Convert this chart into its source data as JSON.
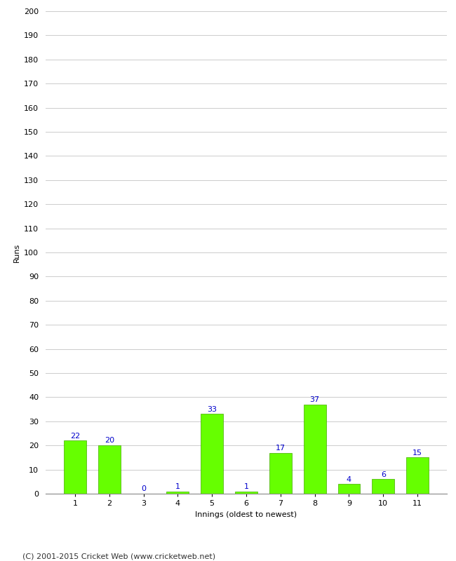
{
  "xlabel": "Innings (oldest to newest)",
  "ylabel": "Runs",
  "categories": [
    "1",
    "2",
    "3",
    "4",
    "5",
    "6",
    "7",
    "8",
    "9",
    "10",
    "11"
  ],
  "values": [
    22,
    20,
    0,
    1,
    33,
    1,
    17,
    37,
    4,
    6,
    15
  ],
  "bar_color": "#66ff00",
  "bar_edge_color": "#44aa00",
  "label_color": "#0000cc",
  "ylim": [
    0,
    200
  ],
  "yticks": [
    0,
    10,
    20,
    30,
    40,
    50,
    60,
    70,
    80,
    90,
    100,
    110,
    120,
    130,
    140,
    150,
    160,
    170,
    180,
    190,
    200
  ],
  "footer": "(C) 2001-2015 Cricket Web (www.cricketweb.net)",
  "background_color": "#ffffff",
  "grid_color": "#cccccc",
  "label_fontsize": 8,
  "tick_fontsize": 8,
  "footer_fontsize": 8,
  "bar_value_fontsize": 8,
  "bar_width": 0.65
}
